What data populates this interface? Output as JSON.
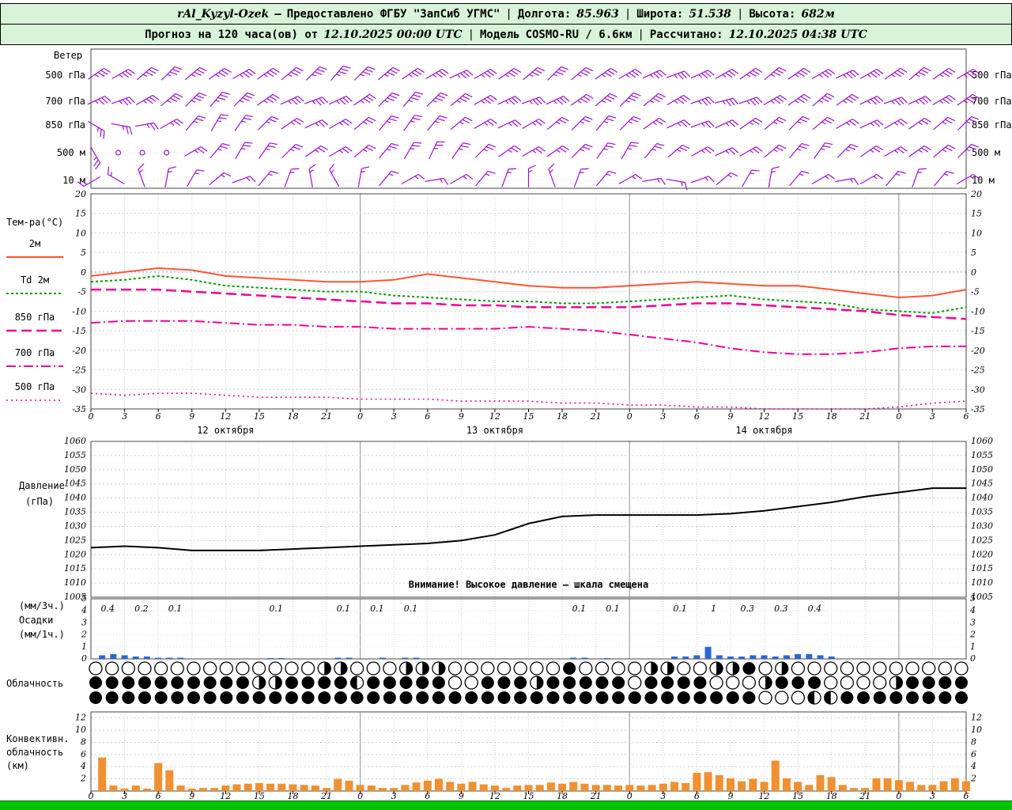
{
  "colors": {
    "header_bg": "#d8f3d8",
    "green_bar": "#00c400",
    "frame": "#444444",
    "grid": "#c3d5c3",
    "grid_day": "#8f8f8f",
    "zero_line": "#7799ee",
    "wind": "#9912cc",
    "temp_2m": "#ff5533",
    "dewpoint": "#009900",
    "magenta": "#ee0099",
    "pressure": "#000000",
    "precip": "#2b65d9",
    "convective": "#f09030",
    "warning": "#990000"
  },
  "header": {
    "sep": "|",
    "line1": {
      "station": "rAl_Kyzyl-Ozek",
      "dash": "—",
      "provider": "Предоставлено ФГБУ \"ЗапСиб УГМС\"",
      "lon_label": "Долгота:",
      "lon_value": "85.963",
      "lat_label": "Широта:",
      "lat_value": "51.538",
      "alt_label": "Высота:",
      "alt_value": "682м"
    },
    "line2": {
      "forecast_label": "Прогноз на 120 часа(ов) от",
      "forecast_value": "12.10.2025 00:00 UTC",
      "model_label": "Модель",
      "model_value": "COSMO-RU / 6.6км",
      "calc_label": "Рассчитано:",
      "calc_value": "12.10.2025 04:38 UTC"
    }
  },
  "time_axis": {
    "hours_span": 78,
    "step": 3,
    "hour_ticks": [
      "0",
      "3",
      "6",
      "9",
      "12",
      "15",
      "18",
      "21",
      "0",
      "3",
      "6",
      "9",
      "12",
      "15",
      "18",
      "21",
      "0",
      "3",
      "6",
      "9",
      "12",
      "15",
      "18",
      "21",
      "0",
      "3",
      "6"
    ],
    "dates": [
      {
        "label": "12 октября",
        "h": 12
      },
      {
        "label": "13 октября",
        "h": 36
      },
      {
        "label": "14 октября",
        "h": 60
      }
    ]
  },
  "panels": {
    "wind": {
      "label": "Ветер",
      "levels": [
        "500 гПа",
        "700 гПа",
        "850 гПа",
        "500 м",
        "10 м"
      ],
      "barb_rows": [
        {
          "level": "500 гПа",
          "ticks": 3,
          "angles": [
            55,
            60,
            50,
            45,
            50,
            55,
            60,
            55,
            50,
            45,
            40,
            45,
            50,
            55,
            60,
            65,
            60,
            55,
            50,
            45,
            50,
            55,
            60,
            65,
            70,
            65,
            60,
            55,
            50,
            55,
            60,
            65,
            60,
            55,
            50,
            55,
            60
          ]
        },
        {
          "level": "700 гПа",
          "ticks": 3,
          "angles": [
            65,
            70,
            60,
            50,
            45,
            40,
            45,
            55,
            65,
            70,
            65,
            55,
            45,
            40,
            45,
            50,
            60,
            65,
            70,
            65,
            55,
            50,
            45,
            50,
            60,
            70,
            75,
            70,
            60,
            55,
            50,
            55,
            65,
            70,
            65,
            60,
            55
          ]
        },
        {
          "level": "850 гПа",
          "ticks": 2,
          "angles": [
            120,
            100,
            80,
            60,
            40,
            30,
            35,
            45,
            55,
            65,
            60,
            50,
            40,
            35,
            40,
            50,
            60,
            65,
            60,
            50,
            45,
            40,
            45,
            55,
            65,
            70,
            65,
            55,
            50,
            45,
            50,
            60,
            65,
            60,
            55,
            50,
            45
          ]
        },
        {
          "level": "500 м",
          "ticks": 2,
          "angles": [
            150,
            null,
            null,
            null,
            60,
            40,
            30,
            35,
            45,
            55,
            60,
            50,
            40,
            30,
            25,
            35,
            45,
            55,
            60,
            55,
            45,
            35,
            30,
            40,
            50,
            60,
            65,
            60,
            50,
            40,
            35,
            45,
            55,
            60,
            55,
            50,
            45
          ]
        },
        {
          "level": "10 м",
          "ticks": 1,
          "angles": [
            -120,
            -60,
            -20,
            10,
            30,
            50,
            70,
            40,
            20,
            -10,
            -30,
            10,
            40,
            60,
            80,
            60,
            40,
            20,
            0,
            -20,
            20,
            40,
            60,
            80,
            100,
            70,
            50,
            30,
            10,
            40,
            60,
            80,
            60,
            40,
            20,
            40,
            60
          ]
        }
      ]
    },
    "temperature": {
      "label": "Тем-ра(°C)",
      "yticks": [
        20,
        15,
        10,
        5,
        0,
        -5,
        -10,
        -15,
        -20,
        -25,
        -30,
        -35
      ],
      "legend": [
        {
          "label": "2м",
          "color": "#ff5533",
          "dash": "solid",
          "width": 2
        },
        {
          "label": "Td 2м",
          "color": "#009900",
          "dash": "dots",
          "width": 2
        },
        {
          "label": "850 гПа",
          "color": "#ee0099",
          "dash": "dash",
          "width": 2.5
        },
        {
          "label": "700 гПа",
          "color": "#ee0099",
          "dash": "dashdot",
          "width": 2
        },
        {
          "label": "500 гПа",
          "color": "#ee0099",
          "dash": "dot",
          "width": 1.6
        }
      ]
    },
    "pressure": {
      "label_1": "Давление",
      "label_2": "(гПа)",
      "warning": "Внимание! Высокое давление — шкала смещена",
      "yticks": [
        1060,
        1055,
        1050,
        1045,
        1040,
        1035,
        1030,
        1025,
        1020,
        1015,
        1010,
        1005
      ]
    },
    "precip": {
      "labels": [
        "(мм/3ч.)",
        "Осадки",
        "(мм/1ч.)"
      ],
      "yticks": [
        5,
        4,
        3,
        2,
        1,
        0
      ],
      "amount_labels": [
        {
          "h": 1.5,
          "v": "0.4"
        },
        {
          "h": 4.5,
          "v": "0.2"
        },
        {
          "h": 7.5,
          "v": "0.1"
        },
        {
          "h": 16.5,
          "v": "0.1"
        },
        {
          "h": 22.5,
          "v": "0.1"
        },
        {
          "h": 25.5,
          "v": "0.1"
        },
        {
          "h": 28.5,
          "v": "0.1"
        },
        {
          "h": 43.5,
          "v": "0.1"
        },
        {
          "h": 46.5,
          "v": "0.1"
        },
        {
          "h": 52.5,
          "v": "0.1"
        },
        {
          "h": 55.5,
          "v": "1"
        },
        {
          "h": 58.5,
          "v": "0.3"
        },
        {
          "h": 61.5,
          "v": "0.3"
        },
        {
          "h": 64.5,
          "v": "0.4"
        }
      ]
    },
    "clouds": {
      "label": "Облачность",
      "rows": [
        "OOOOOOOOOOOOOORROOORRROOOOOOOFOOOORROORRFOROOOOOOOOOOO",
        "FFFFFFFFFFRRFFFFLFFFFFOOFFFRFFFFFOFFFFOOORFFFOOOORFFFF",
        "FFFFFFFFFFFFFFFFFFFFFFFFFFFFFFFFFFFFFFFFFOOOLLFFFFFFFF"
      ]
    },
    "convective": {
      "labels": [
        "Конвективн.",
        "облачность",
        "(км)"
      ],
      "yticks": [
        12,
        10,
        8,
        6,
        4,
        2
      ]
    }
  },
  "chart_data": [
    {
      "type": "line",
      "title": "Температура (°C)",
      "x_start": 0,
      "x_step": 3,
      "x_unit": "часы от 12.10.2025 00:00 UTC",
      "ylim": [
        -35,
        20
      ],
      "series": [
        {
          "name": "2м",
          "color": "#ff5533",
          "dash": "solid",
          "width": 2,
          "values": [
            -1,
            0,
            1,
            0.5,
            -1,
            -1.5,
            -2,
            -2.5,
            -2.5,
            -2,
            -0.5,
            -1.5,
            -2.5,
            -3.5,
            -4,
            -4,
            -3.5,
            -3,
            -2.5,
            -3,
            -3.5,
            -3.5,
            -4.5,
            -5.5,
            -6.5,
            -6,
            -4.5
          ]
        },
        {
          "name": "Td 2м",
          "color": "#009900",
          "dash": "dots",
          "width": 2,
          "values": [
            -2.5,
            -2,
            -1,
            -2,
            -3.5,
            -4,
            -4.5,
            -5,
            -5,
            -6,
            -6.5,
            -7,
            -7.5,
            -7.5,
            -8,
            -8,
            -7.5,
            -7,
            -6.5,
            -6,
            -7,
            -7.5,
            -8,
            -9.5,
            -10,
            -10.5,
            -9
          ]
        },
        {
          "name": "850 гПа",
          "color": "#ee0099",
          "dash": "dash",
          "width": 2.5,
          "values": [
            -4.5,
            -4.5,
            -4.5,
            -5,
            -5.5,
            -6,
            -6.5,
            -7,
            -7.5,
            -8,
            -8,
            -8.5,
            -8.5,
            -9,
            -9,
            -9,
            -9,
            -8.5,
            -8,
            -8,
            -8.5,
            -9,
            -9.5,
            -10,
            -11,
            -11.5,
            -12
          ]
        },
        {
          "name": "700 гПа",
          "color": "#ee0099",
          "dash": "dashdot",
          "width": 2,
          "values": [
            -13,
            -12.5,
            -12.5,
            -12.5,
            -13,
            -13.5,
            -13.5,
            -14,
            -14,
            -14.5,
            -14.5,
            -14.5,
            -14.5,
            -14,
            -14.5,
            -15,
            -16,
            -17,
            -18,
            -19.5,
            -20.5,
            -21,
            -21,
            -20.5,
            -19.5,
            -19,
            -19
          ]
        },
        {
          "name": "500 гПа",
          "color": "#ee0099",
          "dash": "dot",
          "width": 1.6,
          "values": [
            -31,
            -31.5,
            -31,
            -31,
            -31.5,
            -32,
            -32,
            -32,
            -32.5,
            -32.5,
            -32.5,
            -33,
            -33,
            -33,
            -33.5,
            -33.5,
            -34,
            -34,
            -34.5,
            -34.5,
            -35,
            -35,
            -35,
            -35,
            -34.5,
            -33.5,
            -33
          ]
        }
      ]
    },
    {
      "type": "line",
      "title": "Давление (гПа)",
      "x_start": 0,
      "x_step": 3,
      "ylim": [
        1005,
        1060
      ],
      "series": [
        {
          "name": "Давление",
          "color": "#000000",
          "dash": "solid",
          "width": 2,
          "values": [
            1022.5,
            1023,
            1022.5,
            1021.5,
            1021.5,
            1021.5,
            1022,
            1022.5,
            1023,
            1023.5,
            1024,
            1025,
            1027,
            1031,
            1033.5,
            1034,
            1034,
            1034,
            1034,
            1034.5,
            1035.5,
            1037,
            1038.5,
            1040.5,
            1042,
            1043.5,
            1043.5
          ]
        }
      ]
    },
    {
      "type": "bar",
      "title": "Осадки (мм/1ч.)",
      "ylim": [
        0,
        5
      ],
      "bars": [
        [
          1,
          0.3
        ],
        [
          2,
          0.4
        ],
        [
          3,
          0.3
        ],
        [
          4,
          0.2
        ],
        [
          5,
          0.2
        ],
        [
          6,
          0.1
        ],
        [
          7,
          0.1
        ],
        [
          8,
          0.1
        ],
        [
          16,
          0.05
        ],
        [
          17,
          0.05
        ],
        [
          22,
          0.1
        ],
        [
          23,
          0.1
        ],
        [
          26,
          0.1
        ],
        [
          28,
          0.1
        ],
        [
          29,
          0.1
        ],
        [
          43,
          0.1
        ],
        [
          44,
          0.1
        ],
        [
          46,
          0.05
        ],
        [
          52,
          0.2
        ],
        [
          53,
          0.2
        ],
        [
          54,
          0.3
        ],
        [
          55,
          1.0
        ],
        [
          56,
          0.3
        ],
        [
          57,
          0.2
        ],
        [
          58,
          0.2
        ],
        [
          59,
          0.3
        ],
        [
          60,
          0.3
        ],
        [
          61,
          0.2
        ],
        [
          62,
          0.3
        ],
        [
          63,
          0.4
        ],
        [
          64,
          0.4
        ],
        [
          65,
          0.3
        ],
        [
          66,
          0.2
        ]
      ]
    },
    {
      "type": "bar",
      "title": "Конвективная облачность (км)",
      "x_start": 0,
      "x_step": 1,
      "ylim": [
        0,
        13
      ],
      "values": [
        0,
        5.5,
        0.9,
        0.4,
        0.9,
        0.4,
        4.6,
        3.4,
        0.9,
        0.4,
        0.5,
        0.5,
        0.9,
        1.1,
        1.2,
        1.3,
        1.2,
        1.2,
        1.1,
        1.0,
        0.9,
        0.5,
        2.0,
        1.7,
        1.0,
        0.9,
        0.5,
        0.5,
        1.0,
        1.4,
        1.7,
        2.0,
        1.5,
        1.2,
        1.5,
        1.1,
        0.9,
        0.5,
        0.9,
        1.0,
        1.0,
        1.4,
        1.2,
        1.5,
        1.2,
        1.0,
        1.0,
        0.9,
        1.0,
        0.9,
        1.0,
        1.2,
        1.5,
        1.3,
        3.0,
        3.1,
        2.6,
        2.1,
        1.6,
        2.0,
        1.5,
        5.0,
        2.1,
        1.5,
        1.0,
        2.6,
        2.3,
        1.0,
        0.5,
        0.5,
        2.1,
        2.1,
        1.8,
        1.5,
        1.0,
        1.0,
        1.6,
        2.1,
        1.6
      ]
    }
  ]
}
